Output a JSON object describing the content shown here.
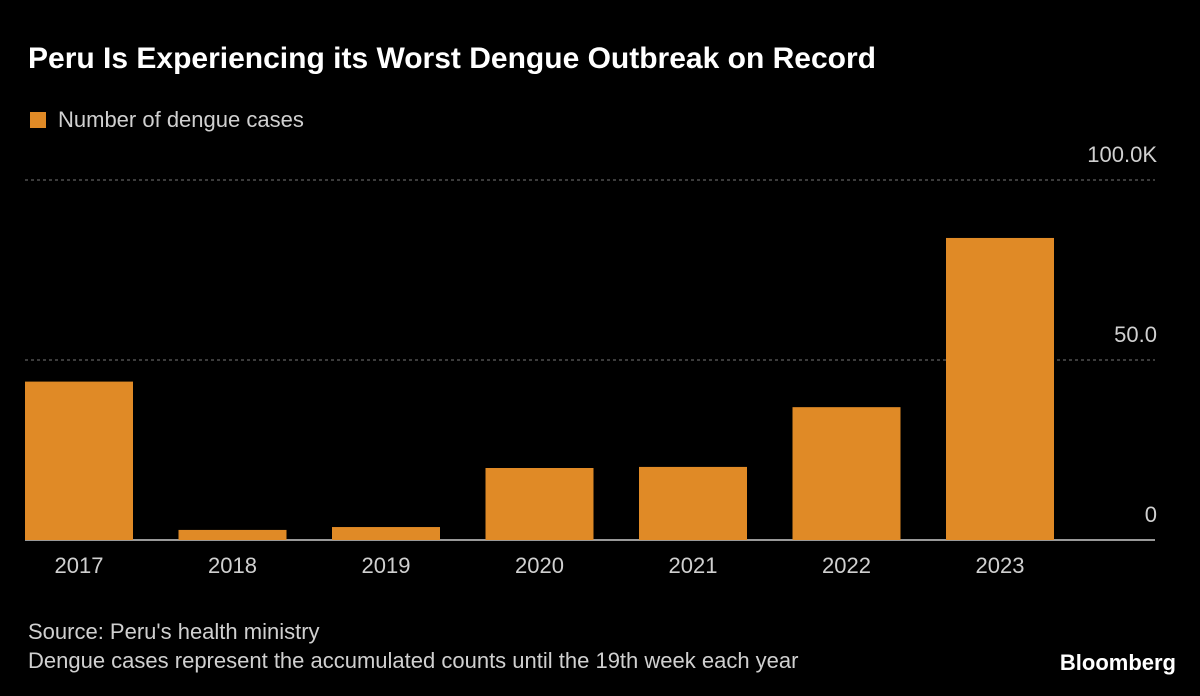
{
  "chart_data": {
    "type": "bar",
    "title": "Peru Is Experiencing its Worst Dengue Outbreak on Record",
    "categories": [
      "2017",
      "2018",
      "2019",
      "2020",
      "2021",
      "2022",
      "2023"
    ],
    "series": [
      {
        "name": "Number of dengue cases",
        "color": "#e08a26",
        "values": [
          44000,
          2800,
          3600,
          20000,
          20300,
          36900,
          83900
        ]
      }
    ],
    "ylim": [
      0,
      100000
    ],
    "yticks": [
      0,
      {
        "value": 50000,
        "label": "50.0"
      },
      {
        "value": 100000,
        "label": "100.0K"
      }
    ],
    "grid": true,
    "source": "Source: Peru's health ministry",
    "note": "Dengue cases represent the accumulated counts until the 19th week each year",
    "brand": "Bloomberg"
  }
}
